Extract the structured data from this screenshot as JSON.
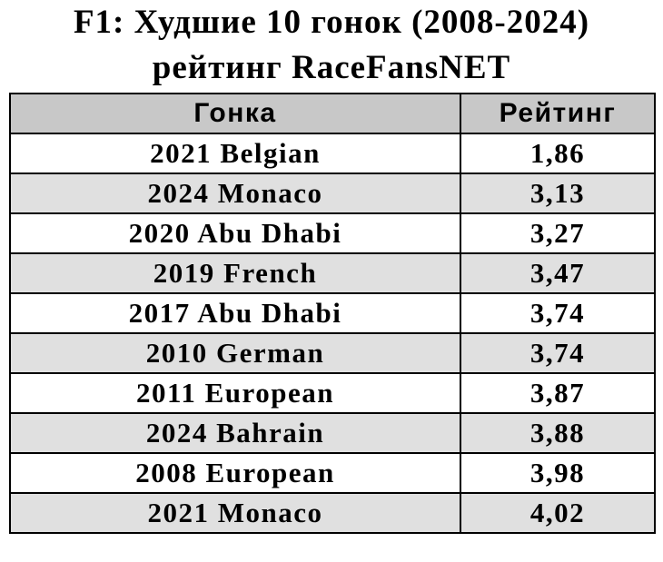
{
  "header": {
    "title": [
      "F1: Худшие 10 гонок (2008-2024)",
      "рейтинг RaceFansNET"
    ]
  },
  "table": {
    "columns": [
      "Гонка",
      "Рейтинг"
    ],
    "rows": [
      [
        "2021 Belgian",
        "1,86"
      ],
      [
        "2024 Monaco",
        "3,13"
      ],
      [
        "2020 Abu Dhabi",
        "3,27"
      ],
      [
        "2019 French",
        "3,47"
      ],
      [
        "2017 Abu Dhabi",
        "3,74"
      ],
      [
        "2010 German",
        "3,74"
      ],
      [
        "2011 European",
        "3,87"
      ],
      [
        "2024 Bahrain",
        "3,88"
      ],
      [
        "2008 European",
        "3,98"
      ],
      [
        "2021 Monaco",
        "4,02"
      ]
    ]
  }
}
